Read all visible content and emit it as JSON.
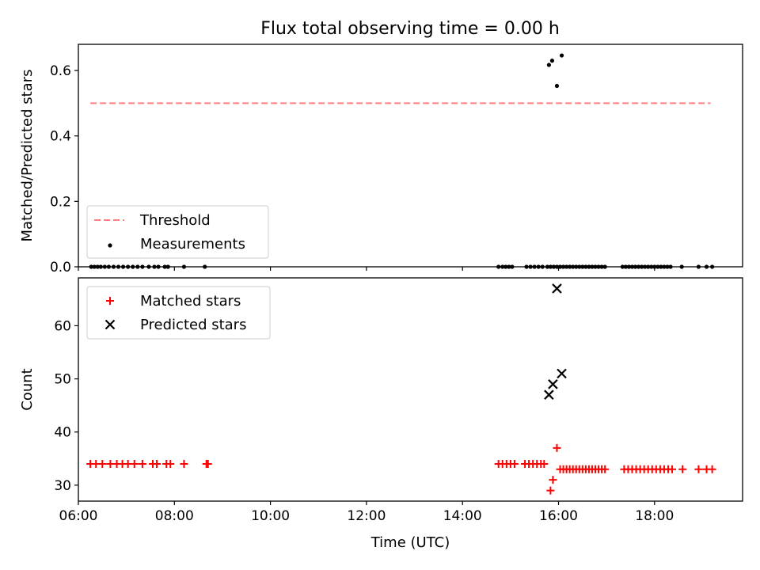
{
  "title": "Flux total observing time = 0.00 h",
  "colors": {
    "threshold": "#ff7f7f",
    "measurements": "#000000",
    "matched": "#ff0000",
    "predicted": "#000000",
    "axes": "#000000",
    "background": "#ffffff"
  },
  "chart_data": [
    {
      "type": "scatter",
      "ylabel": "Matched/Predicted stars",
      "xlabel": "",
      "xlim": [
        "06:00",
        "19:50"
      ],
      "ylim": [
        0.0,
        0.68
      ],
      "yticks": [
        0.0,
        0.2,
        0.4,
        0.6
      ],
      "yticklabels": [
        "0.0",
        "0.2",
        "0.4",
        "0.6"
      ],
      "grid": false,
      "legend_position": "lower-left",
      "series": [
        {
          "name": "Threshold",
          "kind": "dashed-line",
          "x": [
            "06:15",
            "19:10"
          ],
          "y": [
            0.5,
            0.5
          ]
        },
        {
          "name": "Measurements",
          "kind": "dots",
          "x": [
            "06:16",
            "06:20",
            "06:24",
            "06:28",
            "06:33",
            "06:38",
            "06:44",
            "06:50",
            "06:56",
            "07:02",
            "07:08",
            "07:14",
            "07:20",
            "07:28",
            "07:35",
            "07:40",
            "07:48",
            "07:52",
            "08:12",
            "08:38",
            "14:45",
            "14:50",
            "14:54",
            "14:58",
            "15:02",
            "15:20",
            "15:25",
            "15:30",
            "15:35",
            "15:40",
            "15:46",
            "15:50",
            "15:54",
            "15:58",
            "16:02",
            "16:06",
            "16:10",
            "16:14",
            "16:18",
            "16:22",
            "16:26",
            "16:30",
            "16:34",
            "16:38",
            "16:42",
            "16:46",
            "16:50",
            "16:54",
            "16:58",
            "17:20",
            "17:24",
            "17:28",
            "17:32",
            "17:36",
            "17:40",
            "17:44",
            "17:48",
            "17:52",
            "17:56",
            "18:00",
            "18:04",
            "18:08",
            "18:12",
            "18:16",
            "18:20",
            "18:34",
            "18:55",
            "19:05",
            "19:12",
            "15:48",
            "15:52",
            "15:58",
            "16:04"
          ],
          "y": [
            0,
            0,
            0,
            0,
            0,
            0,
            0,
            0,
            0,
            0,
            0,
            0,
            0,
            0,
            0,
            0,
            0,
            0,
            0,
            0,
            0,
            0,
            0,
            0,
            0,
            0,
            0,
            0,
            0,
            0,
            0,
            0,
            0,
            0,
            0,
            0,
            0,
            0,
            0,
            0,
            0,
            0,
            0,
            0,
            0,
            0,
            0,
            0,
            0,
            0,
            0,
            0,
            0,
            0,
            0,
            0,
            0,
            0,
            0,
            0,
            0,
            0,
            0,
            0,
            0,
            0,
            0,
            0,
            0,
            0.617,
            0.63,
            0.553,
            0.646
          ]
        }
      ]
    },
    {
      "type": "scatter",
      "ylabel": "Count",
      "xlabel": "Time (UTC)",
      "xlim": [
        "06:00",
        "19:50"
      ],
      "ylim": [
        27,
        69
      ],
      "xticks": [
        "06:00",
        "08:00",
        "10:00",
        "12:00",
        "14:00",
        "16:00",
        "18:00"
      ],
      "yticks": [
        30,
        40,
        50,
        60
      ],
      "yticklabels": [
        "30",
        "40",
        "50",
        "60"
      ],
      "grid": false,
      "legend_position": "upper-left",
      "series": [
        {
          "name": "Matched stars",
          "kind": "plus",
          "x": [
            "06:15",
            "06:22",
            "06:30",
            "06:40",
            "06:48",
            "06:55",
            "07:02",
            "07:10",
            "07:20",
            "07:33",
            "07:38",
            "07:50",
            "07:55",
            "08:12",
            "08:40",
            "08:42",
            "14:45",
            "14:50",
            "14:55",
            "15:00",
            "15:05",
            "15:18",
            "15:23",
            "15:28",
            "15:33",
            "15:38",
            "15:42",
            "15:50",
            "15:53",
            "15:58",
            "16:02",
            "16:06",
            "16:10",
            "16:14",
            "16:18",
            "16:22",
            "16:26",
            "16:30",
            "16:34",
            "16:38",
            "16:42",
            "16:46",
            "16:50",
            "16:54",
            "16:58",
            "17:22",
            "17:27",
            "17:32",
            "17:37",
            "17:42",
            "17:47",
            "17:52",
            "17:57",
            "18:02",
            "18:07",
            "18:12",
            "18:17",
            "18:22",
            "18:35",
            "18:55",
            "19:05",
            "19:12"
          ],
          "y": [
            34,
            34,
            34,
            34,
            34,
            34,
            34,
            34,
            34,
            34,
            34,
            34,
            34,
            34,
            34,
            34,
            34,
            34,
            34,
            34,
            34,
            34,
            34,
            34,
            34,
            34,
            34,
            29,
            31,
            37,
            33,
            33,
            33,
            33,
            33,
            33,
            33,
            33,
            33,
            33,
            33,
            33,
            33,
            33,
            33,
            33,
            33,
            33,
            33,
            33,
            33,
            33,
            33,
            33,
            33,
            33,
            33,
            33,
            33,
            33,
            33,
            33
          ]
        },
        {
          "name": "Predicted stars",
          "kind": "x",
          "x": [
            "15:48",
            "15:53",
            "15:58",
            "16:04"
          ],
          "y": [
            47,
            49,
            67,
            51
          ]
        }
      ]
    }
  ]
}
